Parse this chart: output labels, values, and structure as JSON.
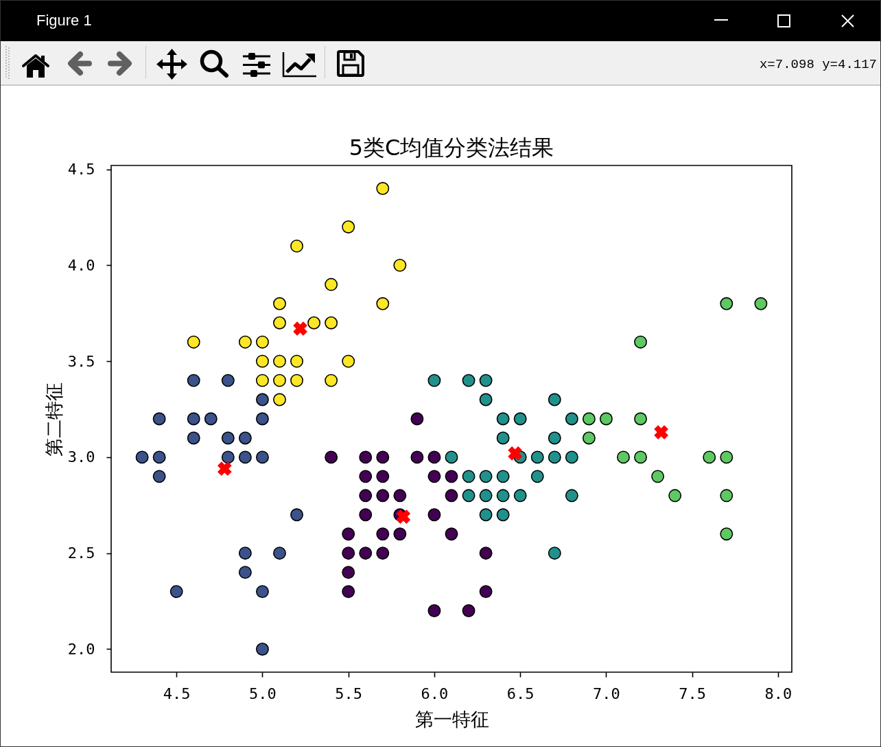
{
  "chart_data": {
    "type": "scatter",
    "title": "5类C均值分类法结果",
    "xlabel": "第一特征",
    "ylabel": "第二特征",
    "xlim": [
      4.12,
      8.08
    ],
    "ylim": [
      1.88,
      4.52
    ],
    "xticks": [
      4.5,
      {
        "value": 5,
        "label": "5.0"
      },
      5.5,
      {
        "value": 6,
        "label": "6.0"
      },
      6.5,
      {
        "value": 7,
        "label": "7.0"
      },
      7.5,
      {
        "value": 8,
        "label": "8.0"
      }
    ],
    "yticks": [
      {
        "value": 2,
        "label": "2.0"
      },
      2.5,
      {
        "value": 3,
        "label": "3.0"
      },
      3.5,
      {
        "value": 4,
        "label": "4.0"
      },
      4.5
    ],
    "marker": "circle",
    "annotations": [
      "Figure 1",
      "x=7.098 y=4.117"
    ],
    "series": [
      {
        "color": "#440154",
        "x": [
          5.9,
          5.4,
          5.6,
          5.7,
          5.9,
          6.0,
          5.6,
          5.7,
          6.0,
          6.1,
          5.6,
          5.7,
          5.8,
          6.1,
          5.6,
          5.8,
          6.0,
          5.5,
          5.7,
          5.8,
          6.1,
          5.5,
          5.6,
          5.7,
          6.3,
          5.5,
          5.5,
          6.3,
          6.0,
          6.2
        ],
        "values": [
          3.2,
          3.0,
          3.0,
          3.0,
          3.0,
          3.0,
          2.9,
          2.9,
          2.9,
          2.9,
          2.8,
          2.8,
          2.8,
          2.8,
          2.7,
          2.7,
          2.7,
          2.6,
          2.6,
          2.6,
          2.6,
          2.5,
          2.5,
          2.5,
          2.5,
          2.4,
          2.3,
          2.3,
          2.2,
          2.2
        ]
      },
      {
        "color": "#3b528b",
        "x": [
          4.6,
          4.8,
          5.0,
          4.4,
          4.6,
          4.7,
          5.0,
          4.6,
          4.8,
          4.9,
          4.3,
          4.4,
          4.8,
          4.9,
          5.0,
          4.4,
          5.2,
          4.9,
          5.1,
          4.9,
          4.5,
          5.0,
          5.0
        ],
        "values": [
          3.4,
          3.4,
          3.3,
          3.2,
          3.2,
          3.2,
          3.2,
          3.1,
          3.1,
          3.1,
          3.0,
          3.0,
          3.0,
          3.0,
          3.0,
          2.9,
          2.7,
          2.5,
          2.5,
          2.4,
          2.3,
          2.3,
          2.0
        ]
      },
      {
        "color": "#21918c",
        "x": [
          6.0,
          6.2,
          6.3,
          6.3,
          6.7,
          6.4,
          6.5,
          6.8,
          6.4,
          6.7,
          6.1,
          6.5,
          6.6,
          6.7,
          6.8,
          6.2,
          6.3,
          6.4,
          6.6,
          6.2,
          6.3,
          6.4,
          6.5,
          6.8,
          6.3,
          6.4,
          6.7
        ],
        "values": [
          3.4,
          3.4,
          3.4,
          3.3,
          3.3,
          3.2,
          3.2,
          3.2,
          3.1,
          3.1,
          3.0,
          3.0,
          3.0,
          3.0,
          3.0,
          2.9,
          2.9,
          2.9,
          2.9,
          2.8,
          2.8,
          2.8,
          2.8,
          2.8,
          2.7,
          2.7,
          2.5
        ]
      },
      {
        "color": "#5ec962",
        "x": [
          7.7,
          7.9,
          7.2,
          6.9,
          7.0,
          7.2,
          6.9,
          7.1,
          7.2,
          7.6,
          7.7,
          7.3,
          7.4,
          7.7,
          7.7
        ],
        "values": [
          3.8,
          3.8,
          3.6,
          3.2,
          3.2,
          3.2,
          3.1,
          3.0,
          3.0,
          3.0,
          3.0,
          2.9,
          2.8,
          2.8,
          2.6
        ]
      },
      {
        "color": "#fde725",
        "x": [
          5.7,
          5.5,
          5.2,
          5.8,
          5.4,
          5.1,
          5.7,
          5.1,
          5.3,
          5.4,
          4.6,
          4.9,
          5.0,
          5.0,
          5.1,
          5.2,
          5.5,
          5.0,
          5.1,
          5.2,
          5.4,
          5.1
        ],
        "values": [
          4.4,
          4.2,
          4.1,
          4.0,
          3.9,
          3.8,
          3.8,
          3.7,
          3.7,
          3.7,
          3.6,
          3.6,
          3.6,
          3.5,
          3.5,
          3.5,
          3.5,
          3.4,
          3.4,
          3.4,
          3.4,
          3.3
        ]
      },
      {
        "color": "#ff0000",
        "marker": "cross",
        "x": [
          5.22,
          4.78,
          5.82,
          6.47,
          7.32
        ],
        "values": [
          3.67,
          2.94,
          2.69,
          3.02,
          3.13
        ]
      }
    ]
  }
}
